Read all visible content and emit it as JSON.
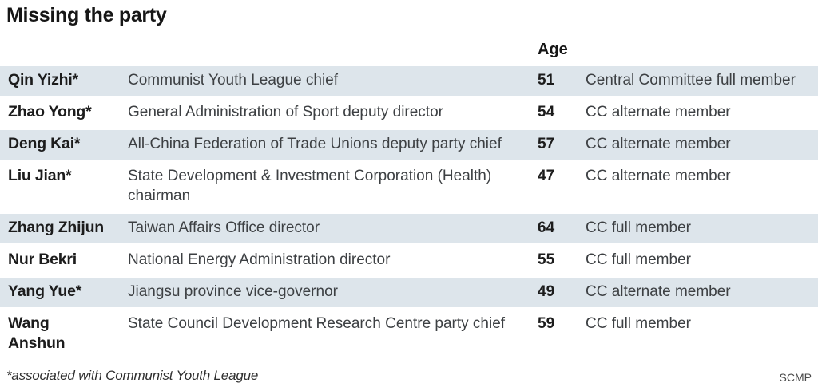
{
  "title": "Missing the party",
  "table": {
    "age_header": "Age",
    "rows": [
      {
        "name": "Qin Yizhi*",
        "position": "Communist Youth League chief",
        "age": "51",
        "membership": "Central Committee full member"
      },
      {
        "name": "Zhao Yong*",
        "position": "General Administration of Sport deputy director",
        "age": "54",
        "membership": "CC alternate member"
      },
      {
        "name": "Deng Kai*",
        "position": "All-China Federation of Trade Unions deputy party chief",
        "age": "57",
        "membership": "CC alternate member"
      },
      {
        "name": "Liu Jian*",
        "position": "State Development & Investment Corporation (Health) chairman",
        "age": "47",
        "membership": "CC alternate member"
      },
      {
        "name": "Zhang Zhijun",
        "position": "Taiwan Affairs Office director",
        "age": "64",
        "membership": "CC full member"
      },
      {
        "name": "Nur Bekri",
        "position": "National Energy Administration director",
        "age": "55",
        "membership": "CC full member"
      },
      {
        "name": "Yang Yue*",
        "position": "Jiangsu province vice-governor",
        "age": "49",
        "membership": "CC alternate member"
      },
      {
        "name": "Wang\nAnshun",
        "position": "State Council Development Research Centre party chief",
        "age": "59",
        "membership": "CC full member"
      }
    ]
  },
  "footnote": "*associated with Communist Youth League",
  "source": "SCMP",
  "colors": {
    "row_stripe": "#dde5eb",
    "text_primary": "#1c1c1c",
    "text_secondary": "#3d4043",
    "background": "#ffffff"
  },
  "chart_data": {
    "type": "table",
    "title": "Missing the party",
    "visible_column_headers": [
      "Age"
    ],
    "columns": [
      "name",
      "position",
      "age",
      "central_committee_status"
    ],
    "rows": [
      [
        "Qin Yizhi*",
        "Communist Youth League chief",
        51,
        "Central Committee full member"
      ],
      [
        "Zhao Yong*",
        "General Administration of Sport deputy director",
        54,
        "CC alternate member"
      ],
      [
        "Deng Kai*",
        "All-China Federation of Trade Unions deputy party chief",
        57,
        "CC alternate member"
      ],
      [
        "Liu Jian*",
        "State Development & Investment Corporation (Health) chairman",
        47,
        "CC alternate member"
      ],
      [
        "Zhang Zhijun",
        "Taiwan Affairs Office director",
        64,
        "CC full member"
      ],
      [
        "Nur Bekri",
        "National Energy Administration director",
        55,
        "CC full member"
      ],
      [
        "Yang Yue*",
        "Jiangsu province vice-governor",
        49,
        "CC alternate member"
      ],
      [
        "Wang Anshun",
        "State Council Development Research Centre party chief",
        59,
        "CC full member"
      ]
    ],
    "footnote": "*associated with Communist Youth League",
    "source": "SCMP",
    "layout_hints": {
      "striped_rows": true,
      "stripe_color": "#dde5eb",
      "first_row_striped": true
    }
  }
}
